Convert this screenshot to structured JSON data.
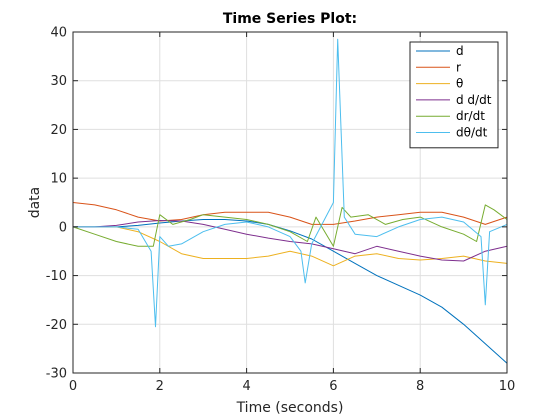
{
  "chart_data": {
    "type": "line",
    "title": "Time Series Plot:",
    "xlabel": "Time (seconds)",
    "ylabel": "data",
    "xlim": [
      0,
      10
    ],
    "ylim": [
      -30,
      40
    ],
    "xticks": [
      0,
      2,
      4,
      6,
      8,
      10
    ],
    "yticks": [
      -30,
      -20,
      -10,
      0,
      10,
      20,
      30,
      40
    ],
    "grid": true,
    "legend_position": "top-right",
    "series": [
      {
        "name": "d",
        "color": "#0072BD",
        "x": [
          0,
          0.5,
          1,
          1.5,
          2,
          2.5,
          3,
          3.5,
          4,
          4.5,
          5,
          5.5,
          6,
          6.5,
          7,
          7.5,
          8,
          8.5,
          9,
          9.5,
          10
        ],
        "y": [
          0,
          0,
          0,
          0.3,
          0.8,
          1.2,
          1.5,
          1.5,
          1.2,
          0.5,
          -0.8,
          -2.5,
          -5,
          -7.5,
          -10,
          -12,
          -14,
          -16.5,
          -20,
          -24,
          -28
        ]
      },
      {
        "name": "r",
        "color": "#D95319",
        "x": [
          0,
          0.5,
          1,
          1.5,
          2,
          2.5,
          3,
          3.5,
          4,
          4.5,
          5,
          5.5,
          6,
          6.5,
          7,
          7.5,
          8,
          8.5,
          9,
          9.5,
          10
        ],
        "y": [
          5,
          4.5,
          3.5,
          2,
          1.2,
          1.5,
          2.5,
          3,
          3,
          3,
          2,
          0.5,
          0.5,
          1.2,
          2,
          2.5,
          3,
          3,
          2,
          0.5,
          2
        ]
      },
      {
        "name": "θ",
        "color": "#EDB120",
        "x": [
          0,
          0.5,
          1,
          1.5,
          2,
          2.5,
          3,
          3.5,
          4,
          4.5,
          5,
          5.5,
          6,
          6.5,
          7,
          7.5,
          8,
          8.5,
          9,
          9.5,
          10
        ],
        "y": [
          0,
          0,
          0,
          -1,
          -3,
          -5.5,
          -6.5,
          -6.5,
          -6.5,
          -6,
          -5,
          -6,
          -8,
          -6,
          -5.5,
          -6.5,
          -6.8,
          -6.5,
          -6,
          -7,
          -7.5
        ]
      },
      {
        "name": "d d/dt",
        "color": "#7E2F8E",
        "x": [
          0,
          0.5,
          1,
          1.5,
          2,
          2.5,
          3,
          3.5,
          4,
          4.5,
          5,
          5.5,
          6,
          6.5,
          7,
          7.5,
          8,
          8.5,
          9,
          9.5,
          10
        ],
        "y": [
          0,
          0,
          0.3,
          1,
          1.3,
          1.2,
          0.5,
          -0.5,
          -1.5,
          -2.3,
          -3,
          -3.5,
          -4.5,
          -5.5,
          -4,
          -5,
          -6,
          -6.8,
          -7,
          -5,
          -4
        ]
      },
      {
        "name": "dr/dt",
        "color": "#77AC30",
        "x": [
          0,
          0.5,
          1,
          1.5,
          1.85,
          2,
          2.3,
          2.7,
          3,
          3.5,
          4,
          4.5,
          5,
          5.4,
          5.6,
          6,
          6.2,
          6.4,
          6.8,
          7.2,
          7.6,
          8,
          8.5,
          9,
          9.3,
          9.5,
          9.7,
          10
        ],
        "y": [
          0,
          -1.5,
          -3,
          -4,
          -4,
          2.5,
          0.5,
          1.5,
          2.5,
          2,
          1.5,
          0.5,
          -1,
          -3,
          2,
          -4,
          4,
          2,
          2.5,
          0.5,
          1.5,
          2,
          0,
          -1.5,
          -3,
          4.5,
          3.5,
          1.5
        ]
      },
      {
        "name": "dθ/dt",
        "color": "#4DBEEE",
        "x": [
          0,
          0.5,
          1,
          1.5,
          1.8,
          1.9,
          2,
          2.2,
          2.5,
          3,
          3.5,
          4,
          4.5,
          5,
          5.25,
          5.35,
          5.5,
          6,
          6.1,
          6.25,
          6.5,
          7,
          7.5,
          8,
          8.5,
          9,
          9.4,
          9.5,
          9.6,
          10
        ],
        "y": [
          0,
          0,
          0,
          -0.5,
          -5,
          -20.5,
          -2,
          -4,
          -3.5,
          -1,
          0.5,
          1,
          0,
          -2,
          -5,
          -11.5,
          -3.5,
          5,
          38.5,
          2,
          -1.5,
          -2,
          0,
          1.5,
          2,
          1,
          -2,
          -16,
          -1,
          0.5
        ]
      }
    ]
  }
}
